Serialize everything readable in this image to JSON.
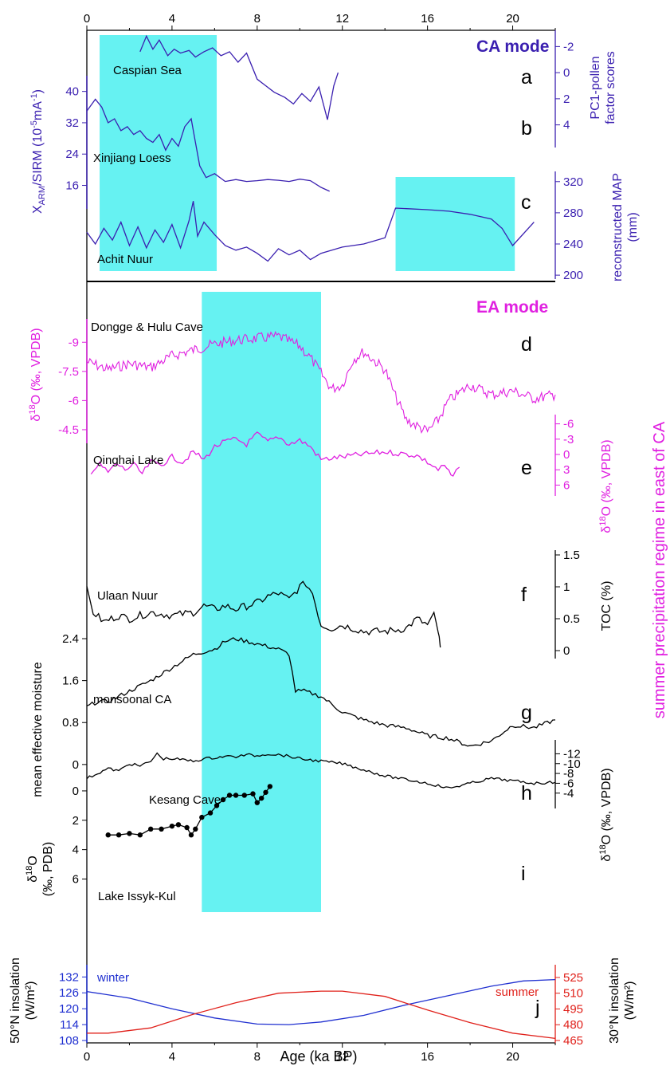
{
  "colors": {
    "ca_mode": "#3a1fb0",
    "ea_mode": "#e020e0",
    "black": "#000000",
    "shade": "#66f2f2",
    "winter": "#1f2fd0",
    "summer": "#e0201a"
  },
  "labels": {
    "ca_mode": "CA mode",
    "ea_mode": "EA mode",
    "x_axis": "Age (ka BP)",
    "right_title": "summer precipitation regime in east of CA",
    "panels": [
      "a",
      "b",
      "c",
      "d",
      "e",
      "f",
      "g",
      "h",
      "i",
      "j"
    ],
    "series": {
      "caspian": "Caspian Sea",
      "xinjiang": "Xinjiang Loess",
      "achit": "Achit Nuur",
      "dongge": "Dongge & Hulu Cave",
      "qinghai": "Qinghai Lake",
      "ulaan": "Ulaan Nuur",
      "monsoonal": "monsoonal CA",
      "kesang": "Kesang Cave",
      "issyk": "Lake Issyk-Kul",
      "winter": "winter",
      "summer": "summer"
    },
    "axes": {
      "pc1_1": "PC1-pollen",
      "pc1_2": "factor scores",
      "map_1": "reconstructed MAP",
      "map_2": "(mm)",
      "xarm_1": "X",
      "xarm_sub": "ARM",
      "xarm_2": "/SIRM (10",
      "xarm_sup": "-5",
      "xarm_3": "mA",
      "xarm_sup2": "-1",
      "xarm_4": ")",
      "d18o_d_1": "δ",
      "d18o_sup": "18",
      "d18o_d_2": "O (‰, VPDB)",
      "toc": "TOC (%)",
      "moisture": "mean effective moisture",
      "h_pdb_1": "δ",
      "h_pdb_2": "O",
      "i_pdb": "(‰, PDB)",
      "ins50_1": "50°N insolation",
      "ins50_2": "(W/m²)",
      "ins30_1": "30°N insolation",
      "ins30_2": "(W/m²)"
    }
  },
  "chart_data": {
    "type": "line",
    "x_unit": "ka BP",
    "xlim": [
      0,
      22
    ],
    "x_ticks": [
      0,
      4,
      8,
      12,
      16,
      20
    ],
    "top_x_ticks": [
      0,
      4,
      8,
      12,
      16,
      20
    ],
    "shaded_intervals": {
      "ca_mode": [
        [
          0.6,
          6.1
        ],
        [
          14.5,
          20.1
        ]
      ],
      "ea_mode": [
        [
          5.4,
          11.0
        ]
      ]
    },
    "series": [
      {
        "name": "Caspian Sea",
        "panel": "a",
        "axis": "PC1-pollen factor scores",
        "ylim": [
          5,
          -3
        ],
        "ticks": [
          -2,
          0,
          2,
          4
        ],
        "ticks_side": "right",
        "inverted": true,
        "x": [
          2.5,
          2.8,
          3.1,
          3.4,
          3.8,
          4.1,
          4.4,
          4.8,
          5.1,
          5.5,
          5.9,
          6.3,
          6.7,
          7.1,
          7.5,
          8.0,
          8.4,
          8.8,
          9.3,
          9.7,
          10.1,
          10.5,
          10.9,
          11.3,
          11.6,
          11.8
        ],
        "y": [
          -1.6,
          -2.8,
          -1.8,
          -2.5,
          -1.3,
          -1.8,
          -1.5,
          -1.7,
          -1.2,
          -1.6,
          -1.9,
          -1.3,
          -1.6,
          -0.8,
          -1.5,
          0.5,
          1.0,
          1.5,
          1.9,
          2.4,
          1.6,
          2.2,
          1.1,
          3.6,
          1.0,
          0.0
        ]
      },
      {
        "name": "Xinjiang Loess",
        "panel": "b",
        "axis": "XARM/SIRM",
        "ylim": [
          10,
          44
        ],
        "ticks": [
          16,
          24,
          32,
          40
        ],
        "ticks_side": "left",
        "x": [
          0.0,
          0.4,
          0.7,
          1.0,
          1.3,
          1.6,
          1.9,
          2.2,
          2.5,
          2.8,
          3.1,
          3.4,
          3.7,
          4.0,
          4.3,
          4.6,
          4.9,
          5.1,
          5.3,
          5.6,
          6.0,
          6.5,
          7.0,
          7.5,
          8.0,
          8.5,
          9.0,
          9.5,
          10.0,
          10.5,
          11.0,
          11.4
        ],
        "y": [
          35.0,
          38.0,
          36.0,
          32.0,
          33.0,
          30.0,
          31.0,
          29.0,
          30.0,
          28.0,
          27.0,
          29.0,
          25.0,
          28.0,
          26.0,
          31.0,
          33.0,
          27.0,
          21.0,
          18.0,
          19.0,
          17.0,
          17.5,
          17.0,
          17.2,
          17.5,
          17.3,
          17.0,
          17.6,
          17.2,
          15.5,
          14.5
        ]
      },
      {
        "name": "Achit Nuur",
        "panel": "c",
        "axis": "reconstructed MAP",
        "ylim": [
          195,
          330
        ],
        "ticks": [
          200,
          240,
          280,
          320
        ],
        "ticks_side": "right",
        "x": [
          0.0,
          0.4,
          0.8,
          1.2,
          1.6,
          2.0,
          2.4,
          2.8,
          3.2,
          3.6,
          4.0,
          4.4,
          4.8,
          5.0,
          5.2,
          5.5,
          6.0,
          6.5,
          7.0,
          7.5,
          8.0,
          8.5,
          9.0,
          9.5,
          10.0,
          10.5,
          11.0,
          12.0,
          13.0,
          14.0,
          14.5,
          16.0,
          17.0,
          18.0,
          19.0,
          19.5,
          20.0,
          21.0
        ],
        "y": [
          255.0,
          240.0,
          260.0,
          245.0,
          268.0,
          238.0,
          262.0,
          235.0,
          258.0,
          242.0,
          265.0,
          235.0,
          270.0,
          295.0,
          250.0,
          268.0,
          252.0,
          238.0,
          232.0,
          236.0,
          228.0,
          218.0,
          234.0,
          226.0,
          232.0,
          220.0,
          228.0,
          236.0,
          240.0,
          248.0,
          286.0,
          284.0,
          282.0,
          278.0,
          272.0,
          260.0,
          238.0,
          268.0
        ]
      },
      {
        "name": "Dongge & Hulu Cave",
        "panel": "d",
        "axis": "δ18O (‰, VPDB)",
        "ylim": [
          -3.8,
          -10.2
        ],
        "ticks": [
          -9,
          -7.5,
          -6,
          -4.5
        ],
        "ticks_side": "left",
        "inverted": true,
        "x": [
          0.0,
          1.0,
          2.0,
          3.0,
          4.0,
          5.0,
          6.0,
          7.0,
          8.0,
          9.0,
          10.0,
          10.5,
          11.0,
          11.5,
          12.0,
          12.5,
          13.0,
          14.0,
          14.5,
          15.0,
          15.5,
          16.0,
          16.5,
          17.0,
          18.0,
          19.0,
          20.0,
          21.0,
          22.0
        ],
        "y": [
          -8.0,
          -7.6,
          -7.9,
          -7.7,
          -8.3,
          -8.6,
          -8.9,
          -9.1,
          -9.2,
          -9.3,
          -8.8,
          -8.2,
          -7.4,
          -6.6,
          -6.8,
          -8.1,
          -8.5,
          -7.6,
          -6.2,
          -5.0,
          -4.7,
          -4.4,
          -5.0,
          -6.0,
          -6.8,
          -6.3,
          -6.5,
          -6.1,
          -6.3
        ],
        "jitter": 0.55
      },
      {
        "name": "Qinghai Lake",
        "panel": "e",
        "axis": "δ18O (‰, VPDB)",
        "ylim": [
          7.5,
          -7.5
        ],
        "ticks": [
          -6,
          -3,
          0,
          3,
          6
        ],
        "ticks_side": "right",
        "inverted": true,
        "x": [
          0.2,
          0.6,
          1.0,
          1.4,
          1.8,
          2.2,
          2.6,
          3.0,
          3.5,
          4.0,
          4.5,
          5.0,
          5.5,
          6.0,
          6.5,
          7.0,
          7.5,
          8.0,
          8.5,
          9.0,
          9.5,
          10.0,
          10.5,
          11.0,
          12.5,
          14.0,
          15.5,
          16.0,
          16.5,
          16.8,
          17.0,
          17.2,
          17.5
        ],
        "y": [
          3.5,
          2.0,
          3.5,
          1.8,
          3.0,
          2.0,
          3.8,
          1.5,
          2.0,
          0.5,
          1.5,
          -0.5,
          1.0,
          -1.5,
          -2.5,
          -3.0,
          -2.0,
          -4.0,
          -2.5,
          -3.5,
          -2.0,
          -2.8,
          -1.5,
          1.0,
          0.2,
          -0.5,
          0.2,
          1.5,
          3.0,
          2.2,
          3.5,
          4.5,
          2.5
        ],
        "jitter": 1.1
      },
      {
        "name": "Ulaan Nuur",
        "panel": "f",
        "axis": "TOC (%)",
        "ylim": [
          -0.1,
          1.55
        ],
        "ticks": [
          0,
          0.5,
          1,
          1.5
        ],
        "ticks_side": "right",
        "x": [
          0.0,
          0.3,
          0.8,
          1.5,
          2.0,
          3.0,
          4.0,
          5.0,
          5.5,
          6.0,
          6.5,
          7.0,
          8.0,
          8.5,
          9.0,
          9.5,
          10.0,
          10.3,
          10.6,
          11.0,
          11.5,
          12.0,
          13.0,
          14.0,
          15.0,
          15.5,
          16.0,
          16.3,
          16.5,
          16.6
        ],
        "y": [
          0.95,
          0.6,
          0.45,
          0.55,
          0.5,
          0.6,
          0.55,
          0.6,
          0.7,
          0.65,
          0.7,
          0.65,
          0.75,
          0.85,
          0.9,
          0.8,
          1.0,
          1.05,
          0.9,
          0.4,
          0.35,
          0.4,
          0.3,
          0.3,
          0.35,
          0.5,
          0.4,
          0.55,
          0.3,
          0.05
        ],
        "jitter": 0.12
      },
      {
        "name": "monsoonal CA",
        "panel": "g",
        "axis": "mean effective moisture",
        "ylim": [
          -0.2,
          2.75
        ],
        "ticks": [
          0,
          0.8,
          1.6,
          2.4
        ],
        "ticks_side": "left",
        "x": [
          0.0,
          0.5,
          1.0,
          2.0,
          3.0,
          4.0,
          5.0,
          6.0,
          6.5,
          7.0,
          8.0,
          9.0,
          9.5,
          9.8,
          10.2,
          11.0,
          12.0,
          13.0,
          14.0,
          15.0,
          16.0,
          17.0,
          18.0,
          19.0,
          20.0,
          21.0,
          22.0
        ],
        "y": [
          1.1,
          1.2,
          1.2,
          1.4,
          1.6,
          1.85,
          2.1,
          2.2,
          2.35,
          2.4,
          2.3,
          2.2,
          2.1,
          1.4,
          1.4,
          1.3,
          1.0,
          0.85,
          0.75,
          0.7,
          0.55,
          0.5,
          0.35,
          0.45,
          0.75,
          0.7,
          0.85
        ],
        "jitter": 0.08
      },
      {
        "name": "Kesang Cave",
        "panel": "h",
        "axis": "δ18O (‰, VPDB)",
        "ylim": [
          -2.5,
          -14.5
        ],
        "ticks": [
          -12,
          -10,
          -8,
          -6,
          -4
        ],
        "ticks_side": "right",
        "inverted": true,
        "x": [
          0.0,
          0.5,
          1.0,
          1.5,
          2.0,
          2.5,
          3.0,
          3.3,
          3.6,
          4.0,
          4.5,
          5.0,
          5.5,
          6.0,
          6.5,
          7.0,
          7.5,
          8.0,
          8.5,
          9.0,
          9.5,
          9.8,
          10.0,
          11.0,
          12.0,
          14.0,
          16.0,
          17.0,
          18.0,
          19.0,
          20.0,
          21.0,
          22.0
        ],
        "y": [
          -7.0,
          -8.0,
          -9.0,
          -8.5,
          -10.0,
          -9.5,
          -10.5,
          -12.0,
          -11.0,
          -11.0,
          -10.8,
          -10.5,
          -11.0,
          -11.2,
          -11.5,
          -11.4,
          -11.8,
          -11.6,
          -12.0,
          -11.8,
          -11.5,
          -11.2,
          -11.0,
          -10.5,
          -10.0,
          -7.5,
          -6.0,
          -5.0,
          -6.0,
          -7.0,
          -6.5,
          -6.0,
          -6.2
        ],
        "jitter": 0.55
      },
      {
        "name": "Lake Issyk-Kul",
        "panel": "i",
        "axis": "δ18O (‰, PDB)",
        "ylim": [
          6.3,
          -1.3
        ],
        "ticks": [
          6,
          4,
          2,
          0
        ],
        "ticks_side": "left",
        "inverted": true,
        "markers": true,
        "x": [
          1.0,
          1.5,
          2.0,
          2.5,
          3.0,
          3.5,
          4.0,
          4.3,
          4.7,
          4.9,
          5.1,
          5.4,
          5.8,
          6.1,
          6.4,
          6.7,
          7.0,
          7.4,
          7.8,
          8.0,
          8.2,
          8.4,
          8.6
        ],
        "y": [
          3.0,
          3.0,
          2.9,
          3.0,
          2.6,
          2.6,
          2.4,
          2.3,
          2.5,
          3.0,
          2.6,
          1.8,
          1.5,
          1.0,
          0.6,
          0.3,
          0.3,
          0.3,
          0.2,
          0.8,
          0.5,
          0.1,
          -0.3
        ]
      },
      {
        "name": "winter",
        "panel": "j",
        "axis": "50°N insolation",
        "ylim": [
          108,
          133
        ],
        "ticks": [
          108,
          114,
          120,
          126,
          132
        ],
        "ticks_side": "left",
        "x": [
          0,
          2,
          4,
          6,
          8,
          9.5,
          11,
          13,
          15,
          17,
          19,
          20.5,
          22
        ],
        "y": [
          126.5,
          124.0,
          120.0,
          116.5,
          114.2,
          114.0,
          115.0,
          117.5,
          121.5,
          125.0,
          128.5,
          130.5,
          131.0
        ]
      },
      {
        "name": "summer",
        "panel": "j",
        "axis": "30°N insolation",
        "ylim": [
          465,
          528
        ],
        "ticks": [
          465,
          480,
          495,
          510,
          525
        ],
        "ticks_side": "right",
        "x": [
          0,
          1,
          3,
          5,
          7,
          9,
          11,
          12,
          14,
          16,
          18,
          20,
          22
        ],
        "y": [
          472,
          472,
          477,
          490,
          501,
          510,
          512,
          512,
          507,
          494,
          482,
          472,
          467
        ]
      }
    ]
  }
}
